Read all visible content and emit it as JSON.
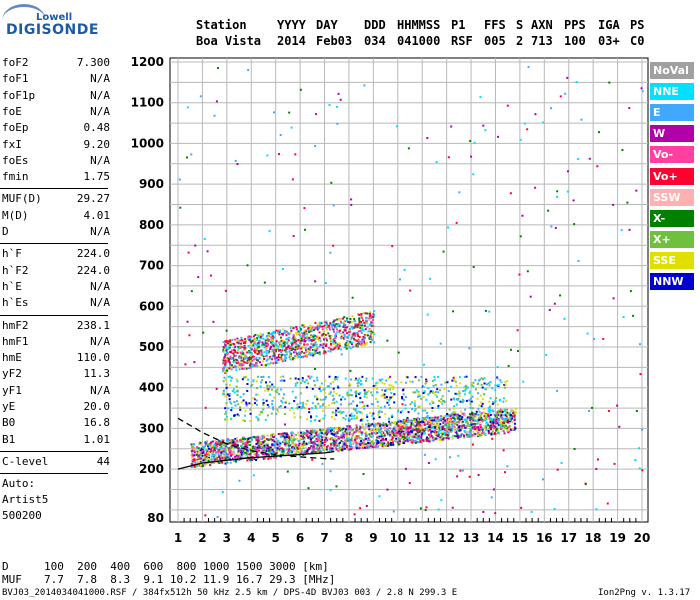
{
  "logo": {
    "top": "Lowell",
    "bottom": "DIGISONDE"
  },
  "header": {
    "labels": [
      "Station",
      "YYYY",
      "DAY",
      "DDD",
      "HHMMSS",
      "P1",
      "FFS",
      "S",
      "AXN",
      "PPS",
      "IGA",
      "PS"
    ],
    "values": [
      "Boa Vista",
      "2014",
      "Feb03",
      "034",
      "041000",
      "RSF",
      "005",
      "2",
      "713",
      "100",
      "03+",
      "C0"
    ]
  },
  "params": {
    "group1": [
      {
        "name": "foF2",
        "value": "7.300"
      },
      {
        "name": "foF1",
        "value": "N/A"
      },
      {
        "name": "foF1p",
        "value": "N/A"
      },
      {
        "name": "foE",
        "value": "N/A"
      },
      {
        "name": "foEp",
        "value": "0.48"
      },
      {
        "name": "fxI",
        "value": "9.20"
      },
      {
        "name": "foEs",
        "value": "N/A"
      },
      {
        "name": "fmin",
        "value": "1.75"
      }
    ],
    "group2": [
      {
        "name": "MUF(D)",
        "value": "29.27"
      },
      {
        "name": "M(D)",
        "value": "4.01"
      },
      {
        "name": "D",
        "value": "N/A"
      }
    ],
    "group3": [
      {
        "name": "h`F",
        "value": "224.0"
      },
      {
        "name": "h`F2",
        "value": "224.0"
      },
      {
        "name": "h`E",
        "value": "N/A"
      },
      {
        "name": "h`Es",
        "value": "N/A"
      }
    ],
    "group4": [
      {
        "name": "hmF2",
        "value": "238.1"
      },
      {
        "name": "hmF1",
        "value": "N/A"
      },
      {
        "name": "hmE",
        "value": "110.0"
      },
      {
        "name": "yF2",
        "value": "11.3"
      },
      {
        "name": "yF1",
        "value": "N/A"
      },
      {
        "name": "yE",
        "value": "20.0"
      },
      {
        "name": "B0",
        "value": "16.8"
      },
      {
        "name": "B1",
        "value": "1.01"
      }
    ],
    "clevel": {
      "name": "C-level",
      "value": "44"
    },
    "auto": [
      "Auto:",
      "Artist5",
      "500200"
    ]
  },
  "legend": [
    {
      "label": "NoVal",
      "color": "#a0a0a0"
    },
    {
      "label": "NNE",
      "color": "#00e0ff"
    },
    {
      "label": "E",
      "color": "#40a8ff"
    },
    {
      "label": "W",
      "color": "#b000a8"
    },
    {
      "label": "Vo-",
      "color": "#ff40a0"
    },
    {
      "label": "Vo+",
      "color": "#ff0030"
    },
    {
      "label": "SSW",
      "color": "#ffb0b0"
    },
    {
      "label": "X-",
      "color": "#008000"
    },
    {
      "label": "X+",
      "color": "#70c040"
    },
    {
      "label": "SSE",
      "color": "#e0e000"
    },
    {
      "label": "NNW",
      "color": "#0000d0"
    }
  ],
  "bottom": {
    "d_label": "D",
    "d_values": "100  200  400  600  800 1000 1500 3000 [km]",
    "muf_label": "MUF",
    "muf_values": "7.7  7.8  8.3  9.1 10.2 11.9 16.7 29.3 [MHz]",
    "footer_left": "BVJ03_2014034041000.RSF / 384fx512h 50 kHz 2.5 km / DPS-4D BVJ03 003 / 2.8 N 299.3 E",
    "footer_right": "Ion2Png v. 1.3.17"
  },
  "chart_data": {
    "type": "scatter",
    "title": "",
    "xlabel": "",
    "ylabel": "",
    "xlim": [
      0.6,
      20.2
    ],
    "ylim": [
      80,
      1210
    ],
    "xticks": [
      1,
      2,
      3,
      4,
      5,
      6,
      7,
      8,
      9,
      10,
      11,
      12,
      13,
      14,
      15,
      16,
      17,
      18,
      19,
      20
    ],
    "yticks": [
      80,
      200,
      300,
      400,
      500,
      600,
      700,
      800,
      900,
      1000,
      1100,
      1200
    ],
    "grid": true,
    "legend_placement": "right-outside",
    "clusters": [
      {
        "name": "F-trace lower",
        "x_range": [
          1.5,
          14.8
        ],
        "y_range": [
          215,
          320
        ],
        "colors": [
          "NNE",
          "E",
          "W",
          "Vo-",
          "Vo+",
          "SSW",
          "X-",
          "X+",
          "SSE",
          "NNW"
        ]
      },
      {
        "name": "F-trace upper (2nd hop)",
        "x_range": [
          2.8,
          9.0
        ],
        "y_range": [
          450,
          580
        ],
        "colors": [
          "W",
          "Vo+",
          "Vo-",
          "X-",
          "SSE",
          "NNE",
          "E"
        ]
      },
      {
        "name": "spread echoes",
        "x_range": [
          2.8,
          14.5
        ],
        "y_range": [
          320,
          430
        ],
        "colors": [
          "NNE",
          "E",
          "NNW",
          "X+",
          "SSE"
        ]
      },
      {
        "name": "scattered noise",
        "x_range": [
          1.0,
          20.0
        ],
        "y_range": [
          80,
          1200
        ],
        "colors": [
          "W",
          "Vo+",
          "X-",
          "E",
          "NNE"
        ]
      }
    ],
    "profiles": [
      {
        "name": "solid profile",
        "style": "solid",
        "points": [
          [
            1,
            200
          ],
          [
            2,
            215
          ],
          [
            3,
            222
          ],
          [
            4,
            228
          ],
          [
            5,
            232
          ],
          [
            6,
            236
          ],
          [
            7,
            240
          ],
          [
            7.4,
            243
          ]
        ]
      },
      {
        "name": "dashed profile",
        "style": "dashed",
        "points": [
          [
            1,
            325
          ],
          [
            2,
            290
          ],
          [
            3,
            262
          ],
          [
            4,
            245
          ],
          [
            5,
            236
          ],
          [
            6,
            230
          ],
          [
            7,
            226
          ],
          [
            7.4,
            225
          ]
        ]
      }
    ]
  }
}
